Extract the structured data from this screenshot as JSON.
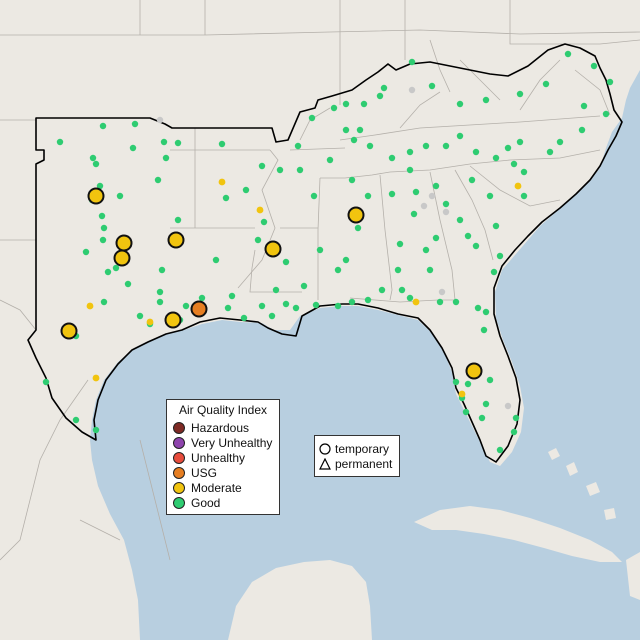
{
  "legend": {
    "title": "Air Quality Index",
    "categories": [
      {
        "label": "Hazardous",
        "color": "#7e2a24"
      },
      {
        "label": "Very Unhealthy",
        "color": "#8e44ad"
      },
      {
        "label": "Unhealthy",
        "color": "#e74c3c"
      },
      {
        "label": "USG",
        "color": "#e67e22"
      },
      {
        "label": "Moderate",
        "color": "#f1c40f"
      },
      {
        "label": "Good",
        "color": "#2ecc71"
      }
    ]
  },
  "shape_legend": {
    "temporary": "temporary",
    "permanent": "permanent"
  },
  "colors": {
    "water": "#b8cfe0",
    "land": "#ece9e3",
    "nodata": "#c8c8c8"
  }
}
